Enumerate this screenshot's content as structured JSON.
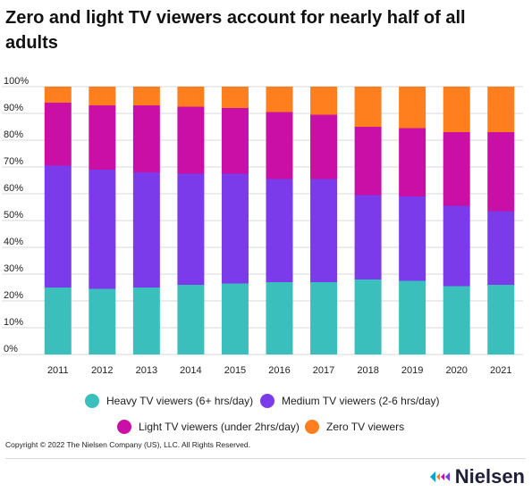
{
  "title": "Zero and light TV viewers account for nearly half of all adults",
  "copyright": "Copyright © 2022 The Nielsen Company (US), LLC. All Rights Reserved.",
  "brand": {
    "name": "Nielsen",
    "logo_icon": "nielsen-logo-icon"
  },
  "colors": {
    "heavy": "#3bbfbd",
    "medium": "#7c3bea",
    "light": "#c90fa6",
    "zero": "#ff7f1f",
    "grid": "#d9d9d9",
    "text": "#222222"
  },
  "chart_data": {
    "type": "bar",
    "stacked": true,
    "categories": [
      "2011",
      "2012",
      "2013",
      "2014",
      "2015",
      "2016",
      "2017",
      "2018",
      "2019",
      "2020",
      "2021"
    ],
    "y_ticks": [
      "0%",
      "10%",
      "20%",
      "30%",
      "40%",
      "50%",
      "60%",
      "70%",
      "80%",
      "90%",
      "100%"
    ],
    "ylim": [
      0,
      100
    ],
    "grid": true,
    "legend_position": "bottom",
    "series": [
      {
        "name": "Heavy TV viewers (6+ hrs/day)",
        "color_key": "heavy",
        "values": [
          25,
          24.5,
          25,
          26,
          26.5,
          27,
          27,
          28,
          27.5,
          25.5,
          26
        ]
      },
      {
        "name": "Medium TV viewers (2-6 hrs/day)",
        "color_key": "medium",
        "values": [
          45.5,
          44.5,
          43,
          41.5,
          41,
          38.5,
          38.5,
          31.5,
          31.5,
          30,
          27.5
        ]
      },
      {
        "name": "Light TV viewers (under 2hrs/day)",
        "color_key": "light",
        "values": [
          23.5,
          24,
          25,
          25,
          24.5,
          25,
          24,
          25.5,
          25.5,
          27.5,
          29.5
        ]
      },
      {
        "name": "Zero TV viewers",
        "color_key": "zero",
        "values": [
          6,
          7,
          7,
          7.5,
          8,
          9.5,
          10.5,
          15,
          15.5,
          17,
          17
        ]
      }
    ]
  }
}
